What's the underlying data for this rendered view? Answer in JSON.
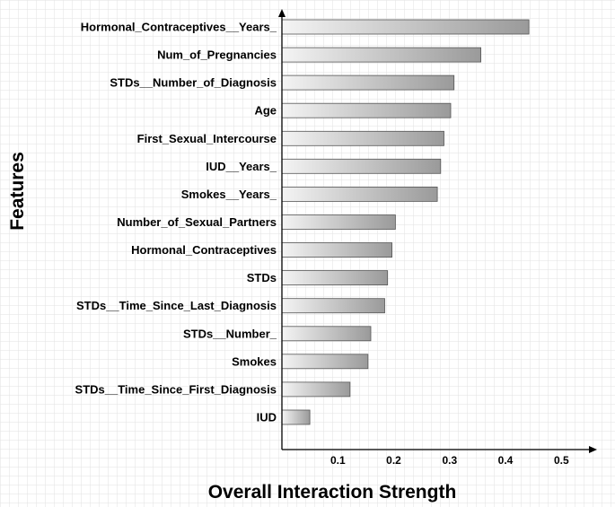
{
  "chart_data": {
    "type": "bar",
    "orientation": "horizontal",
    "title": "",
    "xlabel": "Overall Interaction Strength",
    "ylabel": "Features",
    "xlim": [
      0,
      0.55
    ],
    "xticks": [
      "0.1",
      "0.2",
      "0.3",
      "0.4",
      "0.5"
    ],
    "grid": true,
    "categories": [
      "Hormonal_Contraceptives__Years_",
      "Num_of_Pregnancies",
      "STDs__Number_of_Diagnosis",
      "Age",
      "First_Sexual_Intercourse",
      "IUD__Years_",
      "Smokes__Years_",
      "Number_of_Sexual_Partners",
      "Hormonal_Contraceptives",
      "STDs",
      "STDs__Time_Since_Last_Diagnosis",
      "STDs__Number_",
      "Smokes",
      "STDs__Time_Since_First_Diagnosis",
      "IUD"
    ],
    "values": [
      0.442,
      0.356,
      0.308,
      0.302,
      0.29,
      0.284,
      0.278,
      0.203,
      0.197,
      0.189,
      0.184,
      0.159,
      0.154,
      0.122,
      0.05
    ],
    "bar_gradient": [
      "#f4f4f4",
      "#9a9a9a"
    ]
  }
}
